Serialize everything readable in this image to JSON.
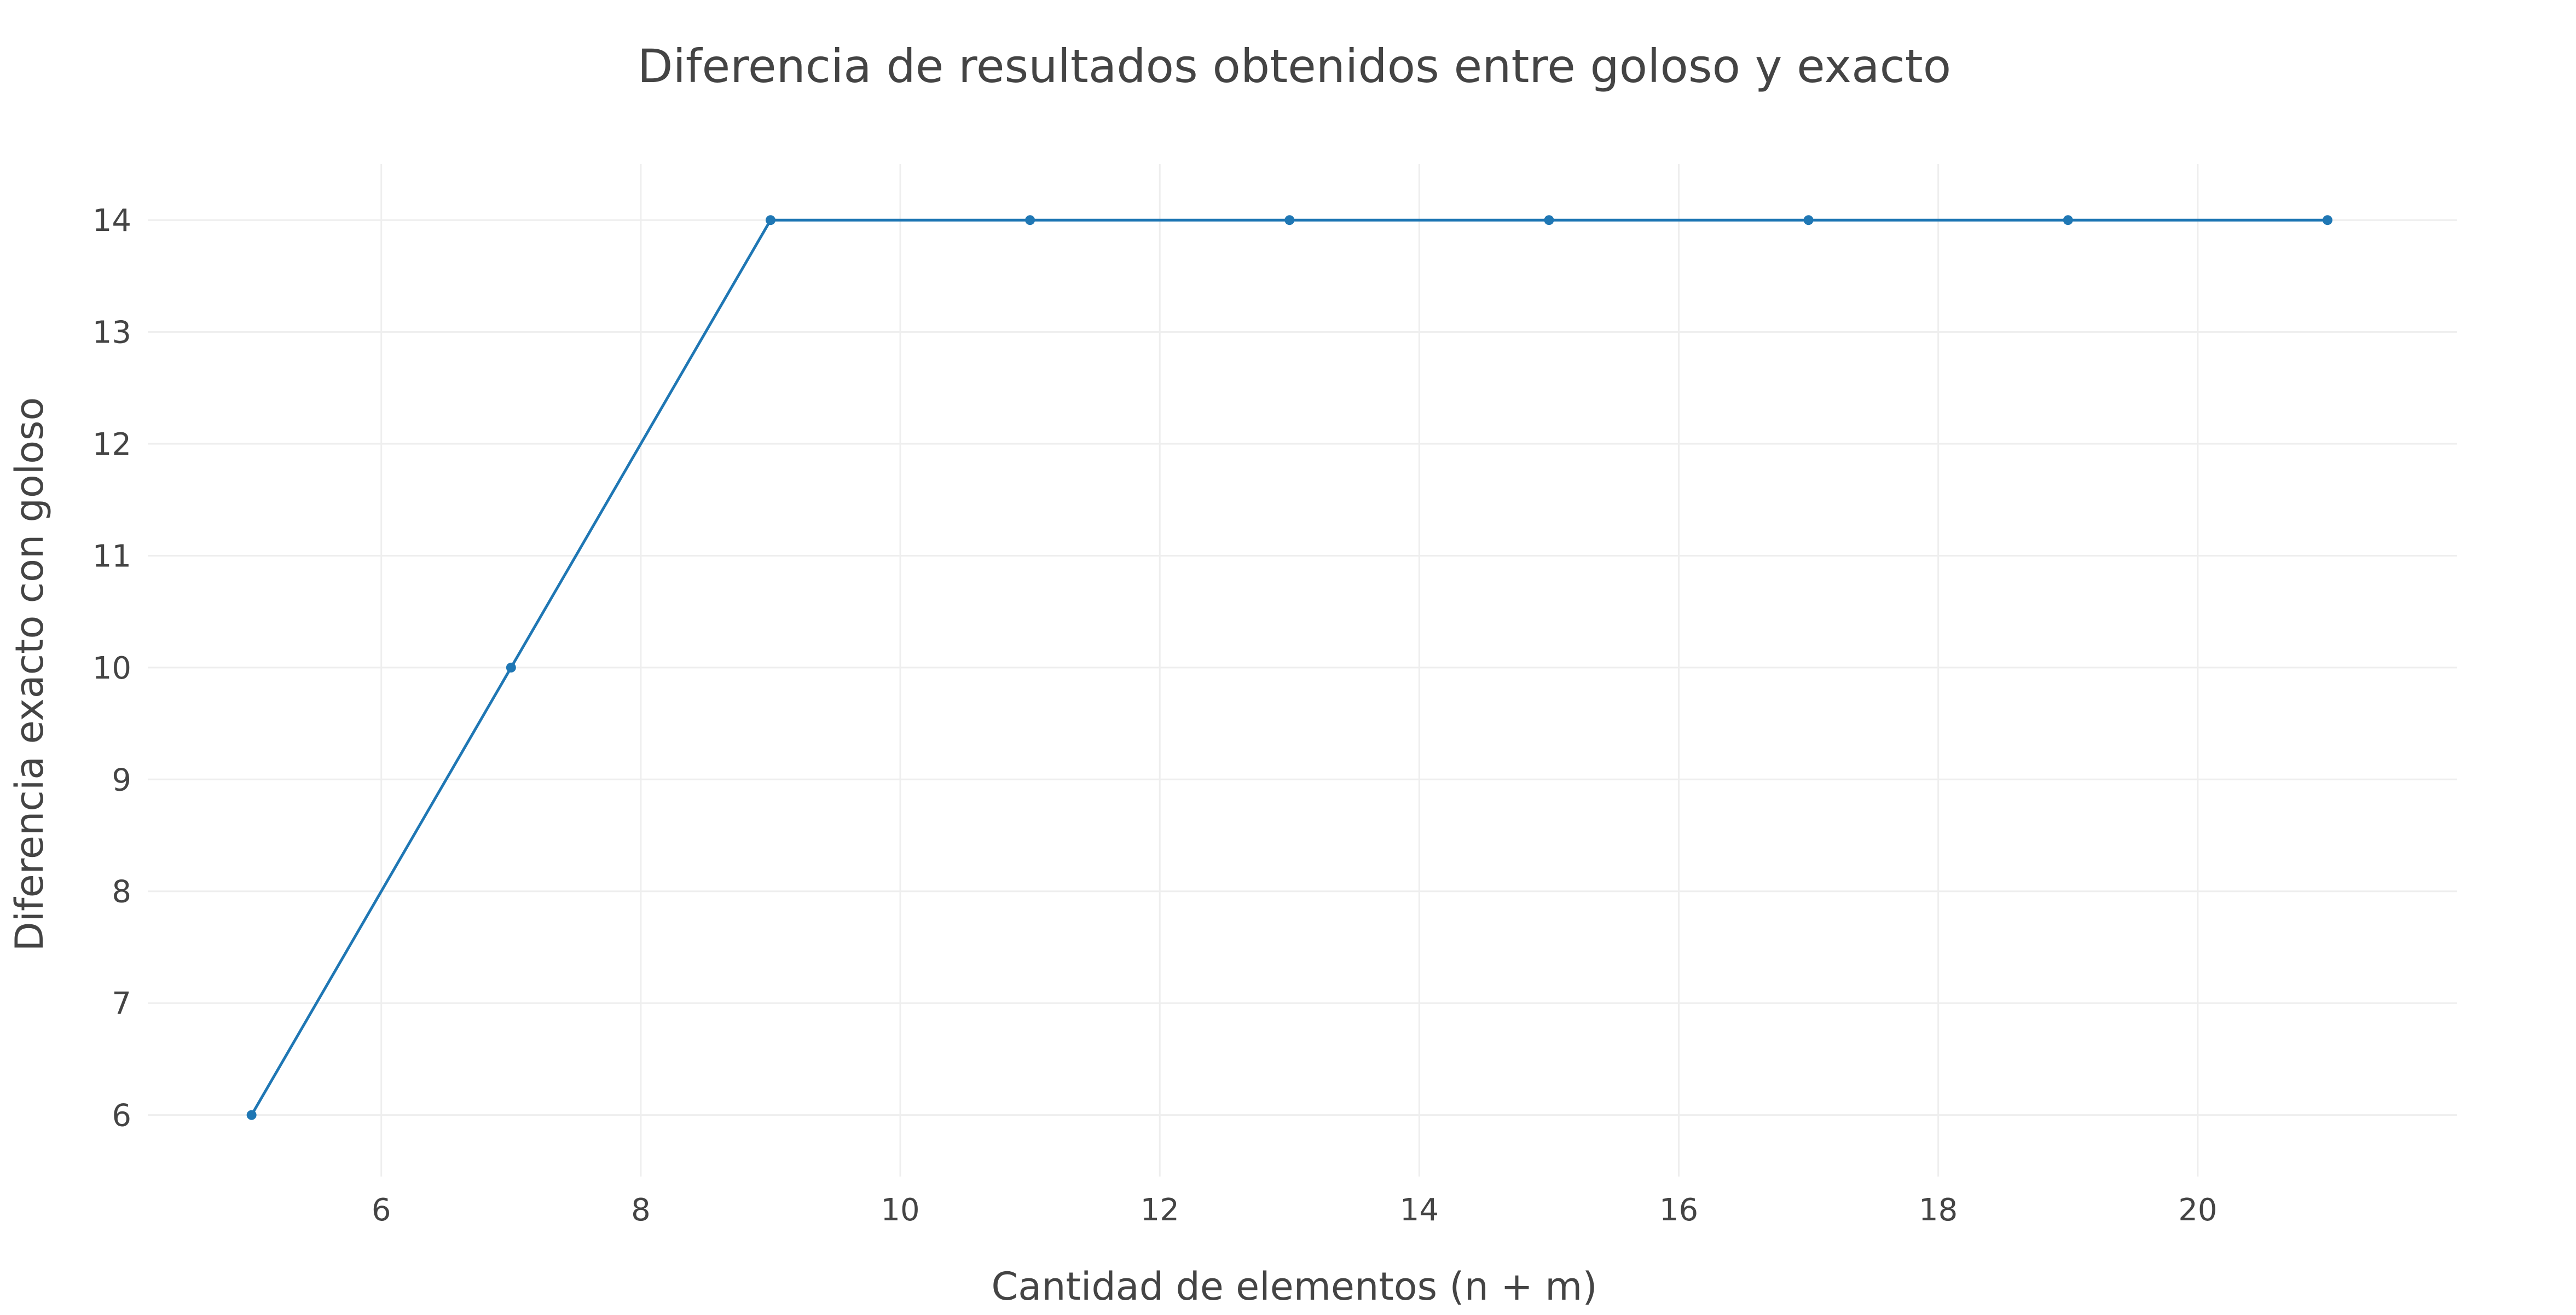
{
  "chart_data": {
    "type": "line",
    "title": "Diferencia de resultados obtenidos entre goloso y exacto",
    "xlabel": "Cantidad de elementos (n + m)",
    "ylabel": "Diferencia exacto con goloso",
    "xlim": [
      4.2,
      22
    ],
    "ylim": [
      5.45,
      14.5
    ],
    "xticks": [
      6,
      8,
      10,
      12,
      14,
      16,
      18,
      20
    ],
    "yticks": [
      6,
      7,
      8,
      9,
      10,
      11,
      12,
      13,
      14
    ],
    "grid": true,
    "legend": "none",
    "series": [
      {
        "color": "#1f77b4",
        "x": [
          5,
          7,
          9,
          11,
          13,
          15,
          17,
          19,
          21
        ],
        "y": [
          6,
          10,
          14,
          14,
          14,
          14,
          14,
          14,
          14
        ]
      }
    ]
  }
}
